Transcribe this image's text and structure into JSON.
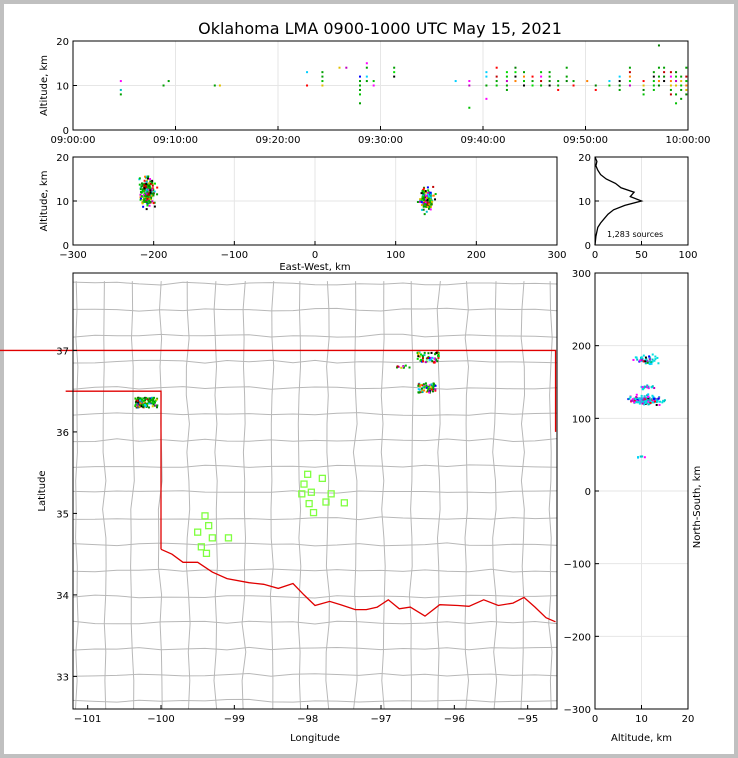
{
  "title": "Oklahoma LMA 0900-1000 UTC May 15, 2021",
  "source_count": "1,283 sources",
  "colors": {
    "frame": "#c0c0c0",
    "state_border": "#e00000",
    "county": "#b8b8b8",
    "station": "#80ff40",
    "grid": "#e6e6e6"
  },
  "chart_data": [
    {
      "id": "time_altitude",
      "type": "scatter",
      "xlabel": "",
      "ylabel": "Altitude, km",
      "x_ticks": [
        "09:00:00",
        "09:10:00",
        "09:20:00",
        "09:30:00",
        "09:40:00",
        "09:50:00",
        "10:00:00"
      ],
      "xlim": [
        "09:00:00",
        "10:00:00"
      ],
      "ylim": [
        0,
        20
      ],
      "y_ticks": [
        "0",
        "10",
        "20"
      ],
      "clusters": [
        {
          "t": "09:04:40",
          "alt": [
            8,
            9,
            11
          ]
        },
        {
          "t": "09:08:50",
          "alt": [
            10
          ]
        },
        {
          "t": "09:09:20",
          "alt": [
            11
          ]
        },
        {
          "t": "09:13:50",
          "alt": [
            10
          ]
        },
        {
          "t": "09:14:20",
          "alt": [
            10
          ]
        },
        {
          "t": "09:22:50",
          "alt": [
            10,
            13
          ]
        },
        {
          "t": "09:24:20",
          "alt": [
            10,
            11,
            12,
            13
          ]
        },
        {
          "t": "09:26:00",
          "alt": [
            14
          ]
        },
        {
          "t": "09:26:40",
          "alt": [
            14
          ]
        },
        {
          "t": "09:28:00",
          "alt": [
            6,
            8,
            9,
            10,
            11,
            12
          ]
        },
        {
          "t": "09:28:40",
          "alt": [
            11,
            12,
            14,
            15
          ]
        },
        {
          "t": "09:29:20",
          "alt": [
            10,
            11
          ]
        },
        {
          "t": "09:31:20",
          "alt": [
            12,
            13,
            14
          ]
        },
        {
          "t": "09:37:20",
          "alt": [
            11
          ]
        },
        {
          "t": "09:38:40",
          "alt": [
            5,
            10,
            11
          ]
        },
        {
          "t": "09:40:20",
          "alt": [
            7,
            10,
            12,
            13
          ]
        },
        {
          "t": "09:41:20",
          "alt": [
            10,
            11,
            12,
            14
          ]
        },
        {
          "t": "09:42:20",
          "alt": [
            9,
            10,
            11,
            12,
            13
          ]
        },
        {
          "t": "09:43:10",
          "alt": [
            11,
            12,
            13,
            14
          ]
        },
        {
          "t": "09:44:00",
          "alt": [
            10,
            11,
            12,
            13
          ]
        },
        {
          "t": "09:44:50",
          "alt": [
            10,
            11,
            12
          ]
        },
        {
          "t": "09:45:40",
          "alt": [
            10,
            11,
            12,
            13
          ]
        },
        {
          "t": "09:46:30",
          "alt": [
            10,
            11,
            12,
            13
          ]
        },
        {
          "t": "09:47:20",
          "alt": [
            9,
            10,
            11
          ]
        },
        {
          "t": "09:48:10",
          "alt": [
            11,
            12,
            14
          ]
        },
        {
          "t": "09:48:50",
          "alt": [
            10,
            11
          ]
        },
        {
          "t": "09:50:10",
          "alt": [
            11
          ]
        },
        {
          "t": "09:51:00",
          "alt": [
            9,
            10
          ]
        },
        {
          "t": "09:52:20",
          "alt": [
            10,
            11
          ]
        },
        {
          "t": "09:53:20",
          "alt": [
            9,
            10,
            11,
            12
          ]
        },
        {
          "t": "09:54:20",
          "alt": [
            10,
            11,
            12,
            13,
            14
          ]
        },
        {
          "t": "09:55:40",
          "alt": [
            8,
            9,
            10,
            11
          ]
        },
        {
          "t": "09:56:40",
          "alt": [
            9,
            10,
            11,
            12,
            13
          ]
        },
        {
          "t": "09:57:10",
          "alt": [
            10,
            11,
            12,
            14,
            19
          ]
        },
        {
          "t": "09:57:40",
          "alt": [
            11,
            12,
            13,
            14
          ]
        },
        {
          "t": "09:58:20",
          "alt": [
            8,
            9,
            10,
            11,
            12,
            13
          ]
        },
        {
          "t": "09:58:50",
          "alt": [
            6,
            8,
            10,
            11,
            12,
            13
          ]
        },
        {
          "t": "09:59:20",
          "alt": [
            7,
            9,
            10,
            11,
            12
          ]
        },
        {
          "t": "09:59:50",
          "alt": [
            8,
            9,
            10,
            11,
            12,
            14
          ]
        }
      ]
    },
    {
      "id": "ew_altitude",
      "type": "scatter",
      "xlabel": "East-West, km",
      "ylabel": "Altitude, km",
      "xlim": [
        -300,
        300
      ],
      "ylim": [
        0,
        20
      ],
      "x_ticks": [
        "−300",
        "−200",
        "−100",
        "0",
        "100",
        "200",
        "300"
      ],
      "y_ticks": [
        "0",
        "10",
        "20"
      ],
      "clusters": [
        {
          "x_range": [
            -225,
            -190
          ],
          "alt_range": [
            6,
            18
          ],
          "center": [
            -208,
            12
          ],
          "n": 190
        },
        {
          "x_range": [
            122,
            155
          ],
          "alt_range": [
            5,
            15
          ],
          "center": [
            138,
            10.5
          ],
          "n": 140
        }
      ]
    },
    {
      "id": "altitude_histogram",
      "type": "line",
      "xlim": [
        0,
        100
      ],
      "ylim": [
        0,
        20
      ],
      "x_ticks": [
        "0",
        "50",
        "100"
      ],
      "y_ticks": [
        "0",
        "10",
        "20"
      ],
      "points": [
        [
          0,
          0
        ],
        [
          1,
          2
        ],
        [
          3,
          4
        ],
        [
          6,
          5
        ],
        [
          10,
          6
        ],
        [
          14,
          7
        ],
        [
          20,
          8
        ],
        [
          32,
          9
        ],
        [
          50,
          10
        ],
        [
          38,
          11
        ],
        [
          42,
          12
        ],
        [
          28,
          13
        ],
        [
          22,
          14
        ],
        [
          12,
          15
        ],
        [
          6,
          16
        ],
        [
          3,
          17
        ],
        [
          1,
          18
        ],
        [
          2,
          19
        ],
        [
          0,
          20
        ]
      ]
    },
    {
      "id": "plan_view",
      "type": "scatter",
      "xlabel": "Longitude",
      "ylabel": "Latitude",
      "xlim": [
        -101.2,
        -94.6
      ],
      "ylim": [
        32.6,
        37.95
      ],
      "x_ticks": [
        "−101",
        "−100",
        "−99",
        "−98",
        "−97",
        "−96",
        "−95"
      ],
      "y_ticks": [
        "33",
        "34",
        "35",
        "36",
        "37"
      ],
      "sources": [
        {
          "lon_range": [
            -100.35,
            -100.05
          ],
          "lat_range": [
            36.3,
            36.42
          ],
          "n": 120
        },
        {
          "lon_range": [
            -96.5,
            -96.2
          ],
          "lat_range": [
            36.85,
            36.98
          ],
          "n": 60
        },
        {
          "lon_range": [
            -96.5,
            -96.25
          ],
          "lat_range": [
            36.48,
            36.6
          ],
          "n": 60
        },
        {
          "lon_range": [
            -96.8,
            -96.6
          ],
          "lat_range": [
            36.78,
            36.84
          ],
          "n": 10
        }
      ],
      "stations": [
        [
          -98.0,
          35.48
        ],
        [
          -98.05,
          35.36
        ],
        [
          -98.08,
          35.24
        ],
        [
          -97.95,
          35.26
        ],
        [
          -97.98,
          35.12
        ],
        [
          -97.92,
          35.01
        ],
        [
          -97.8,
          35.43
        ],
        [
          -97.75,
          35.14
        ],
        [
          -97.68,
          35.24
        ],
        [
          -97.5,
          35.13
        ],
        [
          -99.4,
          34.97
        ],
        [
          -99.35,
          34.85
        ],
        [
          -99.5,
          34.77
        ],
        [
          -99.3,
          34.7
        ],
        [
          -99.45,
          34.59
        ],
        [
          -99.38,
          34.51
        ],
        [
          -99.08,
          34.7
        ]
      ]
    },
    {
      "id": "altitude_ns",
      "type": "scatter",
      "xlabel": "Altitude, km",
      "ylabel": "North-South, km",
      "xlim": [
        0,
        20
      ],
      "ylim": [
        -300,
        300
      ],
      "x_ticks": [
        "0",
        "10",
        "20"
      ],
      "y_ticks": [
        "300",
        "200",
        "100",
        "0",
        "−100",
        "−200",
        "−300"
      ],
      "clusters": [
        {
          "alt_range": [
            5,
            20
          ],
          "ns_range": [
            115,
            135
          ],
          "center": [
            11,
            125
          ],
          "n": 170
        },
        {
          "alt_range": [
            8,
            15
          ],
          "ns_range": [
            140,
            150
          ],
          "center": [
            11,
            143
          ],
          "n": 20
        },
        {
          "alt_range": [
            6,
            16
          ],
          "ns_range": [
            170,
            195
          ],
          "center": [
            11,
            180
          ],
          "n": 50
        },
        {
          "alt_range": [
            8,
            14
          ],
          "ns_range": [
            45,
            50
          ],
          "center": [
            10,
            47
          ],
          "n": 6
        }
      ]
    }
  ]
}
